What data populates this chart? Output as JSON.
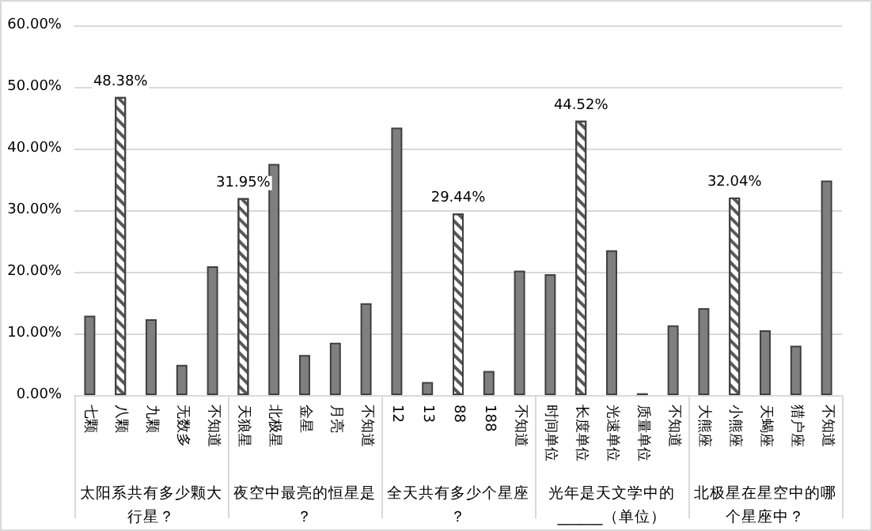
{
  "chart_data": {
    "type": "bar",
    "categories": [
      "七颗",
      "八颗",
      "九颗",
      "无数多",
      "不知道",
      "天狼星",
      "北极星",
      "金星",
      "月亮",
      "不知道",
      "12",
      "13",
      "88",
      "188",
      "不知道",
      "时间单位",
      "长度单位",
      "光速单位",
      "质量单位",
      "不知道",
      "大熊座",
      "小熊座",
      "天蝎座",
      "猎户座",
      "不知道"
    ],
    "values": [
      12.9,
      48.38,
      12.3,
      4.9,
      20.9,
      31.95,
      37.5,
      6.5,
      8.5,
      14.9,
      43.4,
      2.1,
      29.44,
      3.9,
      20.2,
      19.6,
      44.52,
      23.5,
      0.3,
      11.3,
      14.1,
      32.04,
      10.5,
      8.0,
      34.8
    ],
    "colors": [
      "#7f7f7f",
      "#ffffff",
      "#7f7f7f",
      "#7f7f7f",
      "#7f7f7f",
      "#ffffff",
      "#7f7f7f",
      "#7f7f7f",
      "#7f7f7f",
      "#7f7f7f",
      "#7f7f7f",
      "#7f7f7f",
      "#ffffff",
      "#7f7f7f",
      "#7f7f7f",
      "#7f7f7f",
      "#ffffff",
      "#7f7f7f",
      "#7f7f7f",
      "#7f7f7f",
      "#7f7f7f",
      "#ffffff",
      "#7f7f7f",
      "#7f7f7f",
      "#7f7f7f"
    ],
    "value_labels": [
      null,
      "48.38%",
      null,
      null,
      null,
      "31.95%",
      null,
      null,
      null,
      null,
      null,
      null,
      "29.44%",
      null,
      null,
      null,
      "44.52%",
      null,
      null,
      null,
      null,
      "32.04%",
      null,
      null,
      null
    ],
    "annotations": [
      "太阳系共有多少颗大行星？",
      "夜空中最亮的恒星是？",
      "全天共有多少个星座？",
      "光年是天文学中的______（单位）",
      "北极星在星空中的哪个星座中？"
    ],
    "ylim": [
      0,
      60
    ],
    "yticks": [
      {
        "value": 0,
        "label": "0.00%"
      },
      {
        "value": 10,
        "label": "10.00%"
      },
      {
        "value": 20,
        "label": "20.00%"
      },
      {
        "value": 30,
        "label": "30.00%"
      },
      {
        "value": 40,
        "label": "40.00%"
      },
      {
        "value": 50,
        "label": "50.00%"
      },
      {
        "value": 60,
        "label": "60.00%"
      }
    ],
    "grid": "y"
  }
}
